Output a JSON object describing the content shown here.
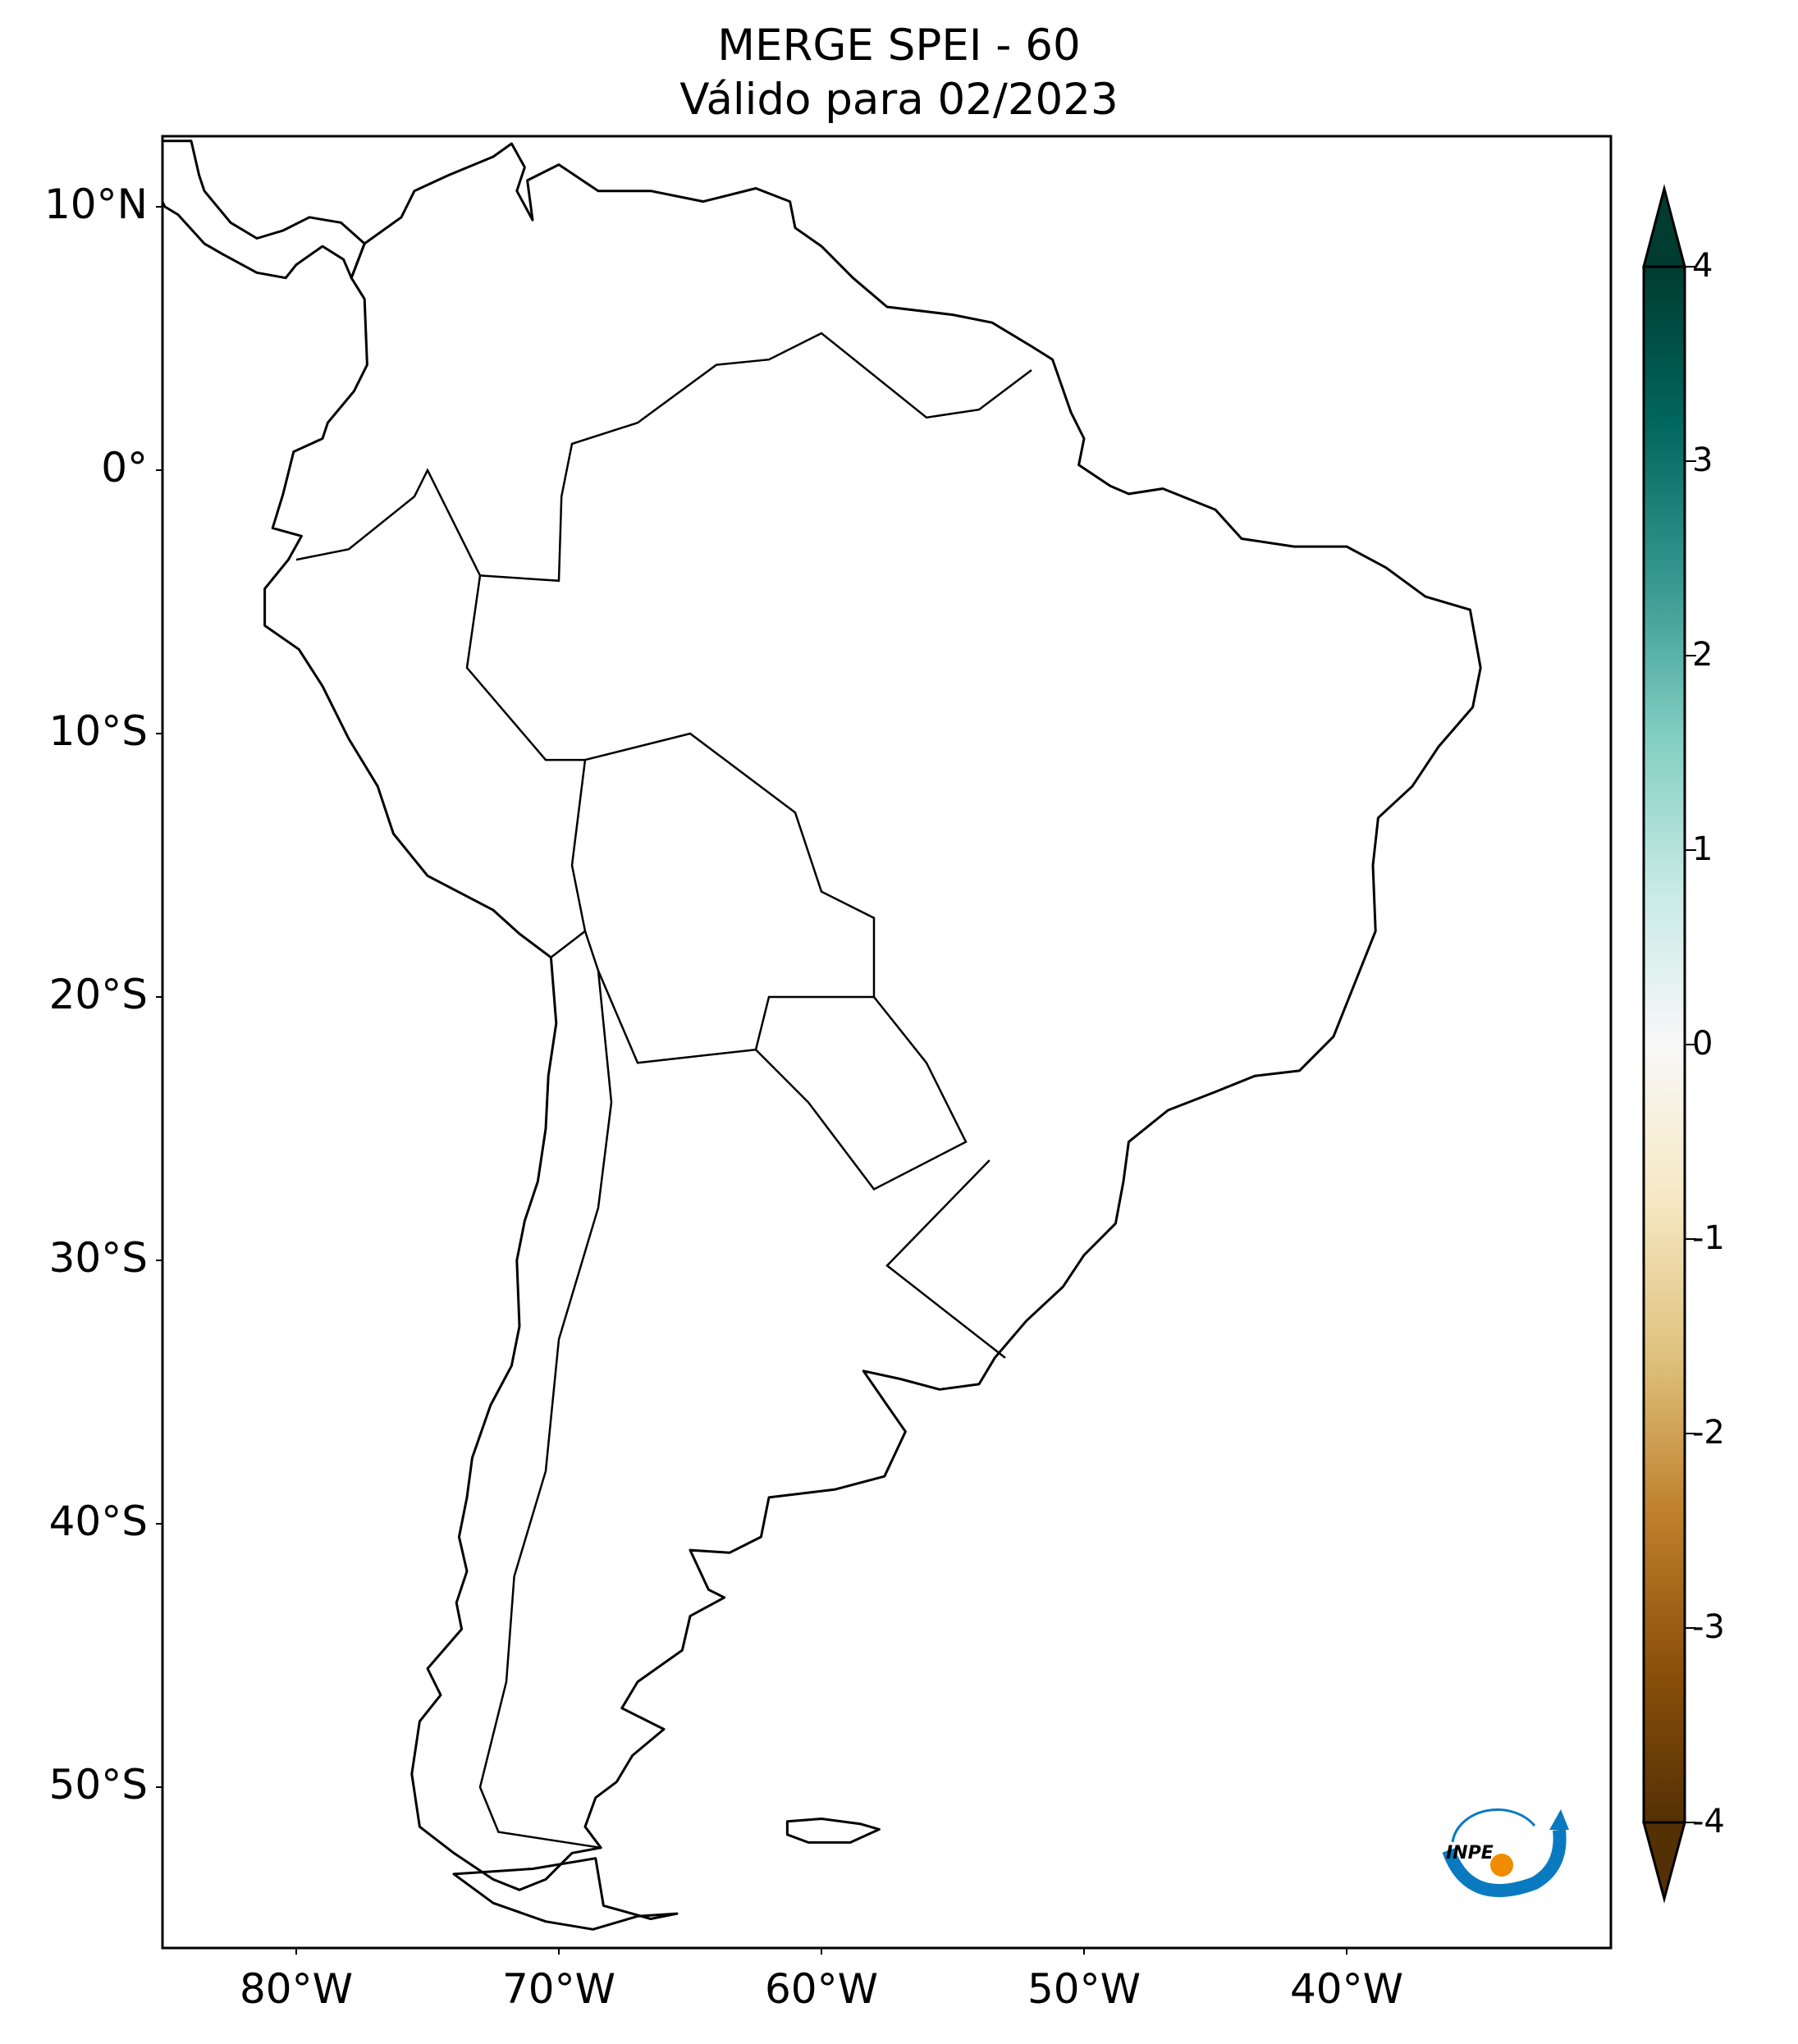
{
  "title": {
    "line1": "MERGE   SPEI - 60",
    "line2": "Válido para 02/2023"
  },
  "map": {
    "projection": "PlateCarree",
    "extent_lon": [
      -85,
      -30
    ],
    "extent_lat": [
      -56,
      12.7
    ],
    "land_outline_color": "#000000",
    "variable": "SPEI-60"
  },
  "lat_ticks": [
    {
      "value": 10,
      "label": "10°N"
    },
    {
      "value": 0,
      "label": "0°"
    },
    {
      "value": -10,
      "label": "10°S"
    },
    {
      "value": -20,
      "label": "20°S"
    },
    {
      "value": -30,
      "label": "30°S"
    },
    {
      "value": -40,
      "label": "40°S"
    },
    {
      "value": -50,
      "label": "50°S"
    }
  ],
  "lon_ticks": [
    {
      "value": -80,
      "label": "80°W"
    },
    {
      "value": -70,
      "label": "70°W"
    },
    {
      "value": -60,
      "label": "60°W"
    },
    {
      "value": -50,
      "label": "50°W"
    },
    {
      "value": -40,
      "label": "40°W"
    }
  ],
  "colorbar": {
    "colormap": "BrBG",
    "range": [
      -4,
      4
    ],
    "extend": "both",
    "ticks": [
      {
        "value": 4,
        "label": "4"
      },
      {
        "value": 3,
        "label": "3"
      },
      {
        "value": 2,
        "label": "2"
      },
      {
        "value": 1,
        "label": "1"
      },
      {
        "value": 0,
        "label": "0"
      },
      {
        "value": -1,
        "label": "-1"
      },
      {
        "value": -2,
        "label": "-2"
      },
      {
        "value": -3,
        "label": "-3"
      },
      {
        "value": -4,
        "label": "-4"
      }
    ],
    "colors": [
      "#543005",
      "#8c510a",
      "#bf812d",
      "#dfc27d",
      "#f6e8c3",
      "#f8f8f8",
      "#c7eae5",
      "#80cdc1",
      "#35978f",
      "#01665e",
      "#003c30"
    ]
  },
  "logo": {
    "text": "INPE",
    "arc_color": "#0a7ac0",
    "dot_color": "#f08c00"
  }
}
